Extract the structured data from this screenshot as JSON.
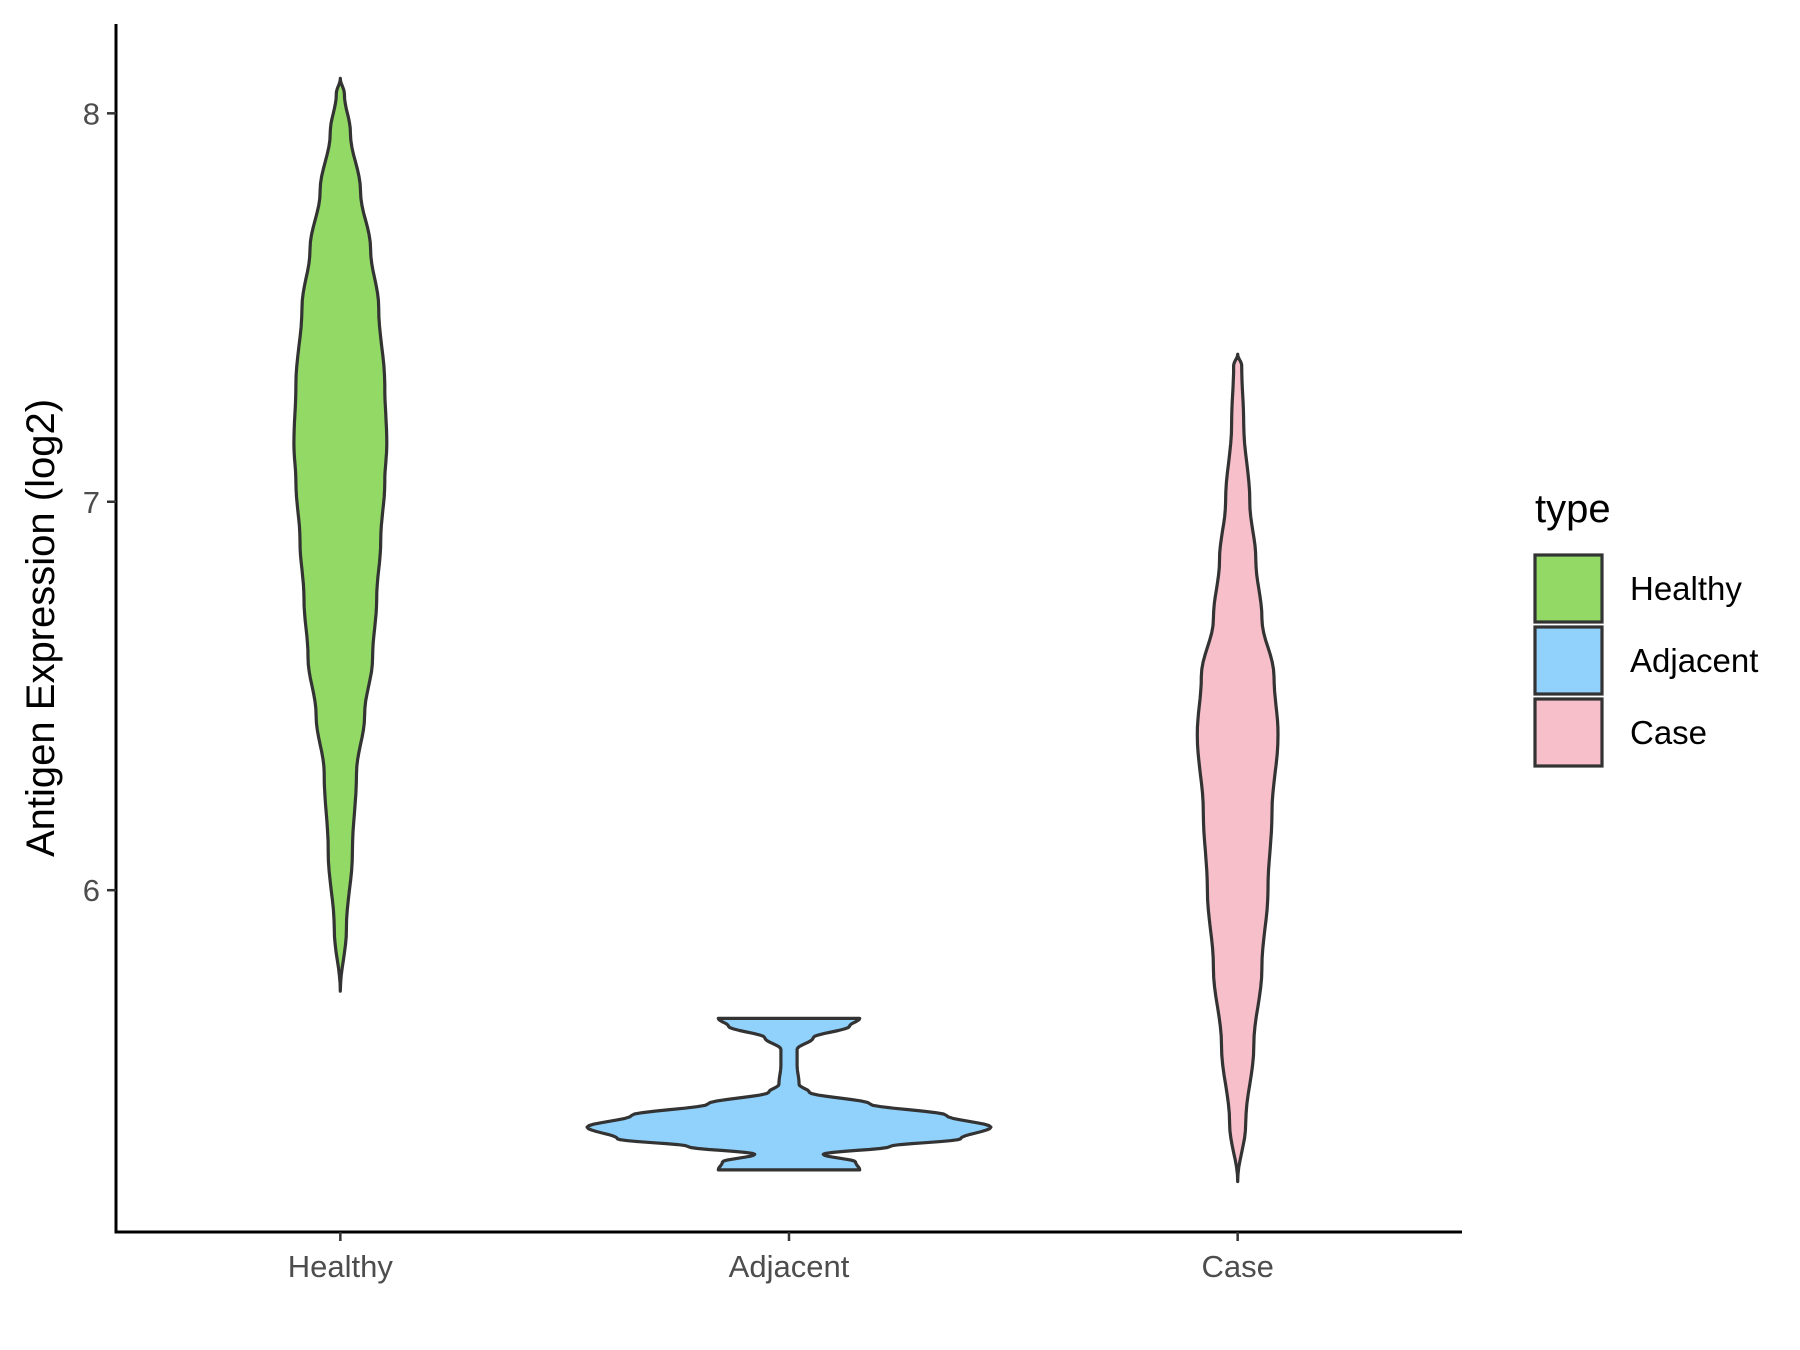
{
  "chart_data": {
    "type": "violin",
    "title": "",
    "xlabel": "",
    "ylabel": "Antigen Expression (log2)",
    "ylim": [
      5.12,
      8.23
    ],
    "yticks": [
      6,
      7,
      8
    ],
    "categories": [
      "Healthy",
      "Adjacent",
      "Case"
    ],
    "legend": {
      "title": "type",
      "placement": "right",
      "entries": [
        "Healthy",
        "Adjacent",
        "Case"
      ]
    },
    "colors": {
      "Healthy": "#92d966",
      "Adjacent": "#91d2fd",
      "Case": "#f7bfca",
      "outline": "#333333"
    },
    "series": [
      {
        "name": "Healthy",
        "min": 5.74,
        "max": 8.09,
        "density_profile": [
          [
            5.74,
            0.0
          ],
          [
            5.9,
            0.03
          ],
          [
            6.1,
            0.06
          ],
          [
            6.3,
            0.08
          ],
          [
            6.45,
            0.12
          ],
          [
            6.6,
            0.16
          ],
          [
            6.75,
            0.18
          ],
          [
            6.9,
            0.2
          ],
          [
            7.05,
            0.22
          ],
          [
            7.15,
            0.23
          ],
          [
            7.3,
            0.22
          ],
          [
            7.5,
            0.19
          ],
          [
            7.65,
            0.15
          ],
          [
            7.8,
            0.1
          ],
          [
            7.95,
            0.05
          ],
          [
            8.05,
            0.02
          ],
          [
            8.09,
            0.0
          ]
        ]
      },
      {
        "name": "Adjacent",
        "min": 5.28,
        "max": 5.67,
        "density_profile": [
          [
            5.28,
            0.35
          ],
          [
            5.3,
            0.33
          ],
          [
            5.32,
            0.17
          ],
          [
            5.34,
            0.5
          ],
          [
            5.36,
            0.85
          ],
          [
            5.39,
            1.0
          ],
          [
            5.42,
            0.78
          ],
          [
            5.45,
            0.4
          ],
          [
            5.48,
            0.1
          ],
          [
            5.5,
            0.05
          ],
          [
            5.55,
            0.04
          ],
          [
            5.59,
            0.04
          ],
          [
            5.62,
            0.12
          ],
          [
            5.65,
            0.3
          ],
          [
            5.67,
            0.35
          ]
        ]
      },
      {
        "name": "Case",
        "min": 5.25,
        "max": 7.38,
        "density_profile": [
          [
            5.25,
            0.0
          ],
          [
            5.4,
            0.04
          ],
          [
            5.6,
            0.08
          ],
          [
            5.8,
            0.12
          ],
          [
            6.0,
            0.15
          ],
          [
            6.2,
            0.17
          ],
          [
            6.4,
            0.2
          ],
          [
            6.55,
            0.18
          ],
          [
            6.7,
            0.12
          ],
          [
            6.85,
            0.09
          ],
          [
            7.0,
            0.06
          ],
          [
            7.2,
            0.03
          ],
          [
            7.35,
            0.02
          ],
          [
            7.38,
            0.0
          ]
        ]
      }
    ]
  }
}
